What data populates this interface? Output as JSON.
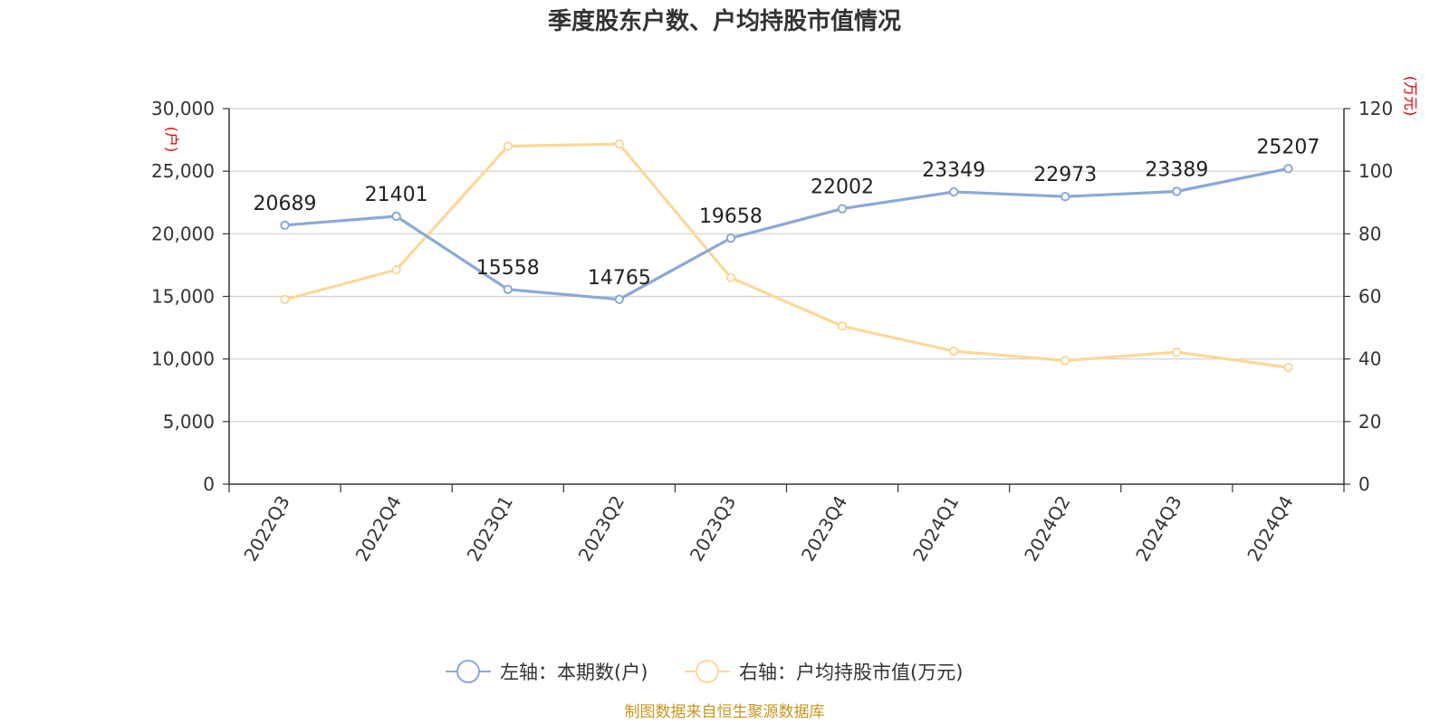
{
  "title": "季度股东户数、户均持股市值情况",
  "source": "制图数据来自恒生聚源数据库",
  "colors": {
    "left_series": "#8aa9d6",
    "right_series": "#fcd898",
    "unit_text": "#e00000",
    "source_text": "#c8961e",
    "grid": "#cfcfcf",
    "axis": "#333333"
  },
  "chart_data": {
    "type": "line",
    "categories": [
      "2022Q3",
      "2022Q4",
      "2023Q1",
      "2023Q2",
      "2023Q3",
      "2023Q4",
      "2024Q1",
      "2024Q2",
      "2024Q3",
      "2024Q4"
    ],
    "left_axis": {
      "unit": "(户)",
      "range": [
        0,
        30000
      ],
      "ticks": [
        "0",
        "5,000",
        "10,000",
        "15,000",
        "20,000",
        "25,000",
        "30,000"
      ]
    },
    "right_axis": {
      "unit": "(万元)",
      "range": [
        0,
        120
      ],
      "ticks": [
        "0",
        "20",
        "40",
        "60",
        "80",
        "100",
        "120"
      ]
    },
    "series": [
      {
        "name": "左轴：本期数(户)",
        "axis": "left",
        "values": [
          20689,
          21401,
          15558,
          14765,
          19658,
          22002,
          23349,
          22973,
          23389,
          25207
        ],
        "show_labels": true
      },
      {
        "name": "右轴：户均持股市值(万元)",
        "axis": "right",
        "values": [
          59,
          68.5,
          108,
          108.7,
          66,
          50.5,
          42.5,
          39.5,
          42.2,
          37.3
        ],
        "show_labels": false
      }
    ],
    "grid": true,
    "legend_position": "bottom-center"
  }
}
